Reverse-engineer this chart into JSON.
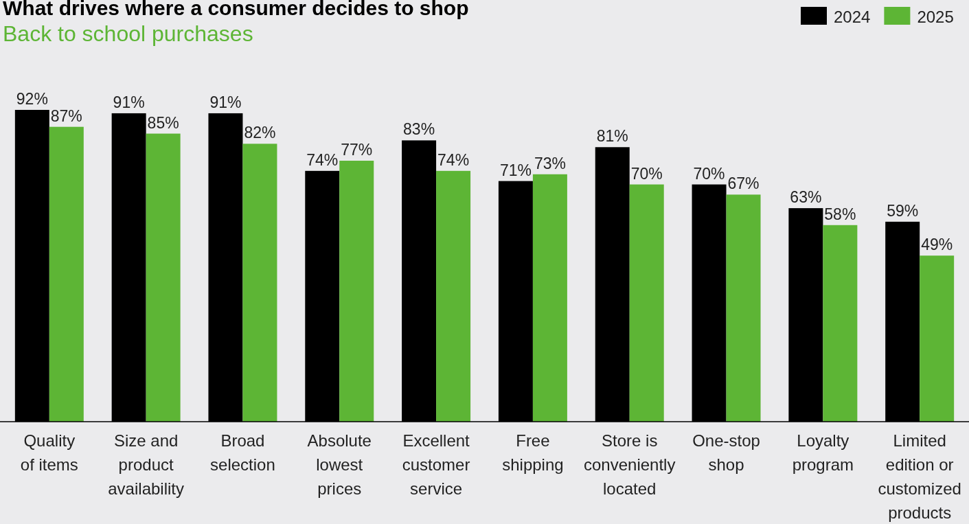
{
  "chart_data": {
    "type": "bar",
    "title": "What drives where a consumer decides to shop",
    "subtitle": "Back to school purchases",
    "categories": [
      "Quality\nof items",
      "Size and\nproduct\navailability",
      "Broad\nselection",
      "Absolute\nlowest\nprices",
      "Excellent\ncustomer\nservice",
      "Free\nshipping",
      "Store is\nconveniently\nlocated",
      "One-stop\nshop",
      "Loyalty\nprogram",
      "Limited\nedition or\ncustomized\nproducts"
    ],
    "series": [
      {
        "name": "2024",
        "color": "#000000",
        "values": [
          92,
          91,
          91,
          74,
          83,
          71,
          81,
          70,
          63,
          59
        ],
        "value_labels": [
          "92%",
          "91%",
          "91%",
          "74%",
          "83%",
          "71%",
          "81%",
          "70%",
          "63%",
          "59%"
        ]
      },
      {
        "name": "2025",
        "color": "#5db535",
        "values": [
          87,
          85,
          82,
          77,
          74,
          73,
          70,
          67,
          58,
          49
        ],
        "value_labels": [
          "87%",
          "85%",
          "82%",
          "77%",
          "74%",
          "73%",
          "70%",
          "67%",
          "58%",
          "49%"
        ]
      }
    ],
    "legend": "top right"
  }
}
